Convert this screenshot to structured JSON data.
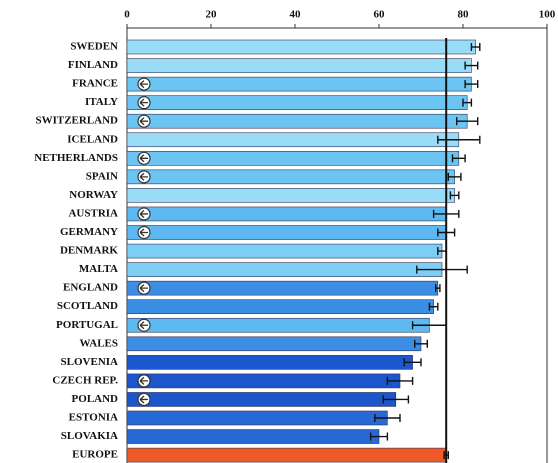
{
  "chart_data": {
    "type": "bar",
    "orientation": "horizontal",
    "categories": [
      "SWEDEN",
      "FINLAND",
      "FRANCE",
      "ITALY",
      "SWITZERLAND",
      "ICELAND",
      "NETHERLANDS",
      "SPAIN",
      "NORWAY",
      "AUSTRIA",
      "GERMANY",
      "DENMARK",
      "MALTA",
      "ENGLAND",
      "SCOTLAND",
      "PORTUGAL",
      "WALES",
      "SLOVENIA",
      "CZECH REP.",
      "POLAND",
      "ESTONIA",
      "SLOVAKIA",
      "EUROPE"
    ],
    "values": [
      83,
      82,
      82,
      81,
      81,
      79,
      79,
      78,
      78,
      76,
      76,
      75,
      75,
      74,
      73,
      72,
      70,
      68,
      65,
      64,
      62,
      60,
      76
    ],
    "errors": [
      1,
      1.5,
      1.5,
      1,
      2.5,
      5,
      1.5,
      1.5,
      1,
      3,
      2,
      1,
      6,
      0.5,
      1,
      4,
      1.5,
      2,
      3,
      3,
      3,
      2,
      0.5
    ],
    "colors": [
      "#98dcf8",
      "#98dcf8",
      "#6cc4f2",
      "#6cc4f2",
      "#6cc4f2",
      "#98dcf8",
      "#6cc4f2",
      "#6cc4f2",
      "#98dcf8",
      "#5cb8ee",
      "#5cb8ee",
      "#7ccef4",
      "#7ccef4",
      "#3c8ee4",
      "#3c8ee4",
      "#5cb8ee",
      "#3c8ee4",
      "#1c56cc",
      "#1c56cc",
      "#1c56cc",
      "#2868d4",
      "#2868d4",
      "#f05a28"
    ],
    "marked": [
      false,
      false,
      true,
      true,
      true,
      false,
      true,
      true,
      false,
      true,
      true,
      false,
      false,
      true,
      false,
      true,
      false,
      false,
      true,
      true,
      false,
      false,
      false
    ],
    "xlim": [
      0,
      100
    ],
    "xticks": [
      0,
      20,
      40,
      60,
      80,
      100
    ],
    "reference_line": true
  }
}
